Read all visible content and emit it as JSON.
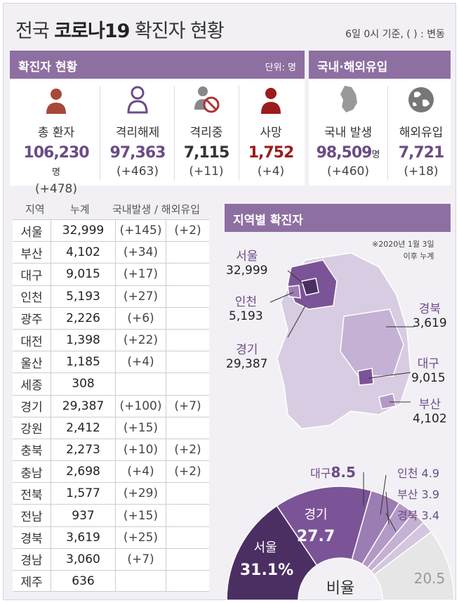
{
  "header": {
    "title_pre": "전국 ",
    "title_bold": "코로나19",
    "title_post": " 확진자 현황",
    "basis": "6일 0시 기준, ( ) : 변동"
  },
  "confirmed_section": {
    "title": "확진자 현황",
    "unit": "단위: 명",
    "stats": [
      {
        "label": "총 환자",
        "value": "106,230",
        "suffix": "명",
        "change": "(+478)",
        "color": "#6b4c86",
        "icon": "patient-icon"
      },
      {
        "label": "격리해제",
        "value": "97,363",
        "suffix": "",
        "change": "(+463)",
        "color": "#6b4c86",
        "icon": "released-icon"
      },
      {
        "label": "격리중",
        "value": "7,115",
        "suffix": "",
        "change": "(+11)",
        "color": "#333333",
        "icon": "isolation-icon"
      },
      {
        "label": "사망",
        "value": "1,752",
        "suffix": "",
        "change": "(+4)",
        "color": "#9b1c1c",
        "icon": "death-icon"
      }
    ]
  },
  "inflow_section": {
    "title": "국내·해외유입",
    "stats": [
      {
        "label": "국내 발생",
        "value": "98,509",
        "suffix": "명",
        "change": "(+460)",
        "color": "#6b4c86",
        "icon": "korea-map-icon"
      },
      {
        "label": "해외유입",
        "value": "7,721",
        "suffix": "",
        "change": "(+18)",
        "color": "#6b4c86",
        "icon": "globe-icon"
      }
    ]
  },
  "table": {
    "headers": [
      "지역",
      "누계",
      "국내발생 / 해외유입"
    ],
    "rows": [
      {
        "region": "서울",
        "total": "32,999",
        "domestic": "(+145)",
        "overseas": "(+2)"
      },
      {
        "region": "부산",
        "total": "4,102",
        "domestic": "(+34)",
        "overseas": ""
      },
      {
        "region": "대구",
        "total": "9,015",
        "domestic": "(+17)",
        "overseas": ""
      },
      {
        "region": "인천",
        "total": "5,193",
        "domestic": "(+27)",
        "overseas": ""
      },
      {
        "region": "광주",
        "total": "2,226",
        "domestic": "(+6)",
        "overseas": ""
      },
      {
        "region": "대전",
        "total": "1,398",
        "domestic": "(+22)",
        "overseas": ""
      },
      {
        "region": "울산",
        "total": "1,185",
        "domestic": "(+4)",
        "overseas": ""
      },
      {
        "region": "세종",
        "total": "308",
        "domestic": "",
        "overseas": ""
      },
      {
        "region": "경기",
        "total": "29,387",
        "domestic": "(+100)",
        "overseas": "(+7)"
      },
      {
        "region": "강원",
        "total": "2,412",
        "domestic": "(+15)",
        "overseas": ""
      },
      {
        "region": "충북",
        "total": "2,273",
        "domestic": "(+10)",
        "overseas": "(+2)"
      },
      {
        "region": "충남",
        "total": "2,698",
        "domestic": "(+4)",
        "overseas": "(+2)"
      },
      {
        "region": "전북",
        "total": "1,577",
        "domestic": "(+29)",
        "overseas": ""
      },
      {
        "region": "전남",
        "total": "937",
        "domestic": "(+15)",
        "overseas": ""
      },
      {
        "region": "경북",
        "total": "3,619",
        "domestic": "(+25)",
        "overseas": ""
      },
      {
        "region": "경남",
        "total": "3,060",
        "domestic": "(+7)",
        "overseas": ""
      },
      {
        "region": "제주",
        "total": "636",
        "domestic": "",
        "overseas": ""
      }
    ]
  },
  "map_section": {
    "title": "지역별 확진자",
    "note_line1": "※2020년 1월 3일",
    "note_line2": "이후 누계",
    "labels": {
      "seoul": {
        "name": "서울",
        "value": "32,999"
      },
      "incheon": {
        "name": "인천",
        "value": "5,193"
      },
      "gyeonggi": {
        "name": "경기",
        "value": "29,387"
      },
      "gyeongbuk": {
        "name": "경북",
        "value": "3,619"
      },
      "daegu": {
        "name": "대구",
        "value": "9,015"
      },
      "busan": {
        "name": "부산",
        "value": "4,102"
      }
    }
  },
  "chart_data": {
    "type": "pie",
    "title": "비율",
    "slices": [
      {
        "name": "서울",
        "value": 31.1,
        "label": "31.1%",
        "color": "#4b2f63"
      },
      {
        "name": "경기",
        "value": 27.7,
        "label": "27.7",
        "color": "#7b5498"
      },
      {
        "name": "대구",
        "value": 8.5,
        "label": "8.5",
        "color": "#9b7cb3"
      },
      {
        "name": "인천",
        "value": 4.9,
        "label": "4.9",
        "color": "#b39ac6"
      },
      {
        "name": "부산",
        "value": 3.9,
        "label": "3.9",
        "color": "#c4b1d3"
      },
      {
        "name": "경북",
        "value": 3.4,
        "label": "3.4",
        "color": "#d4c6df"
      },
      {
        "name": "",
        "value": 20.5,
        "label": "20.5",
        "color": "#e6e6e6"
      }
    ]
  }
}
